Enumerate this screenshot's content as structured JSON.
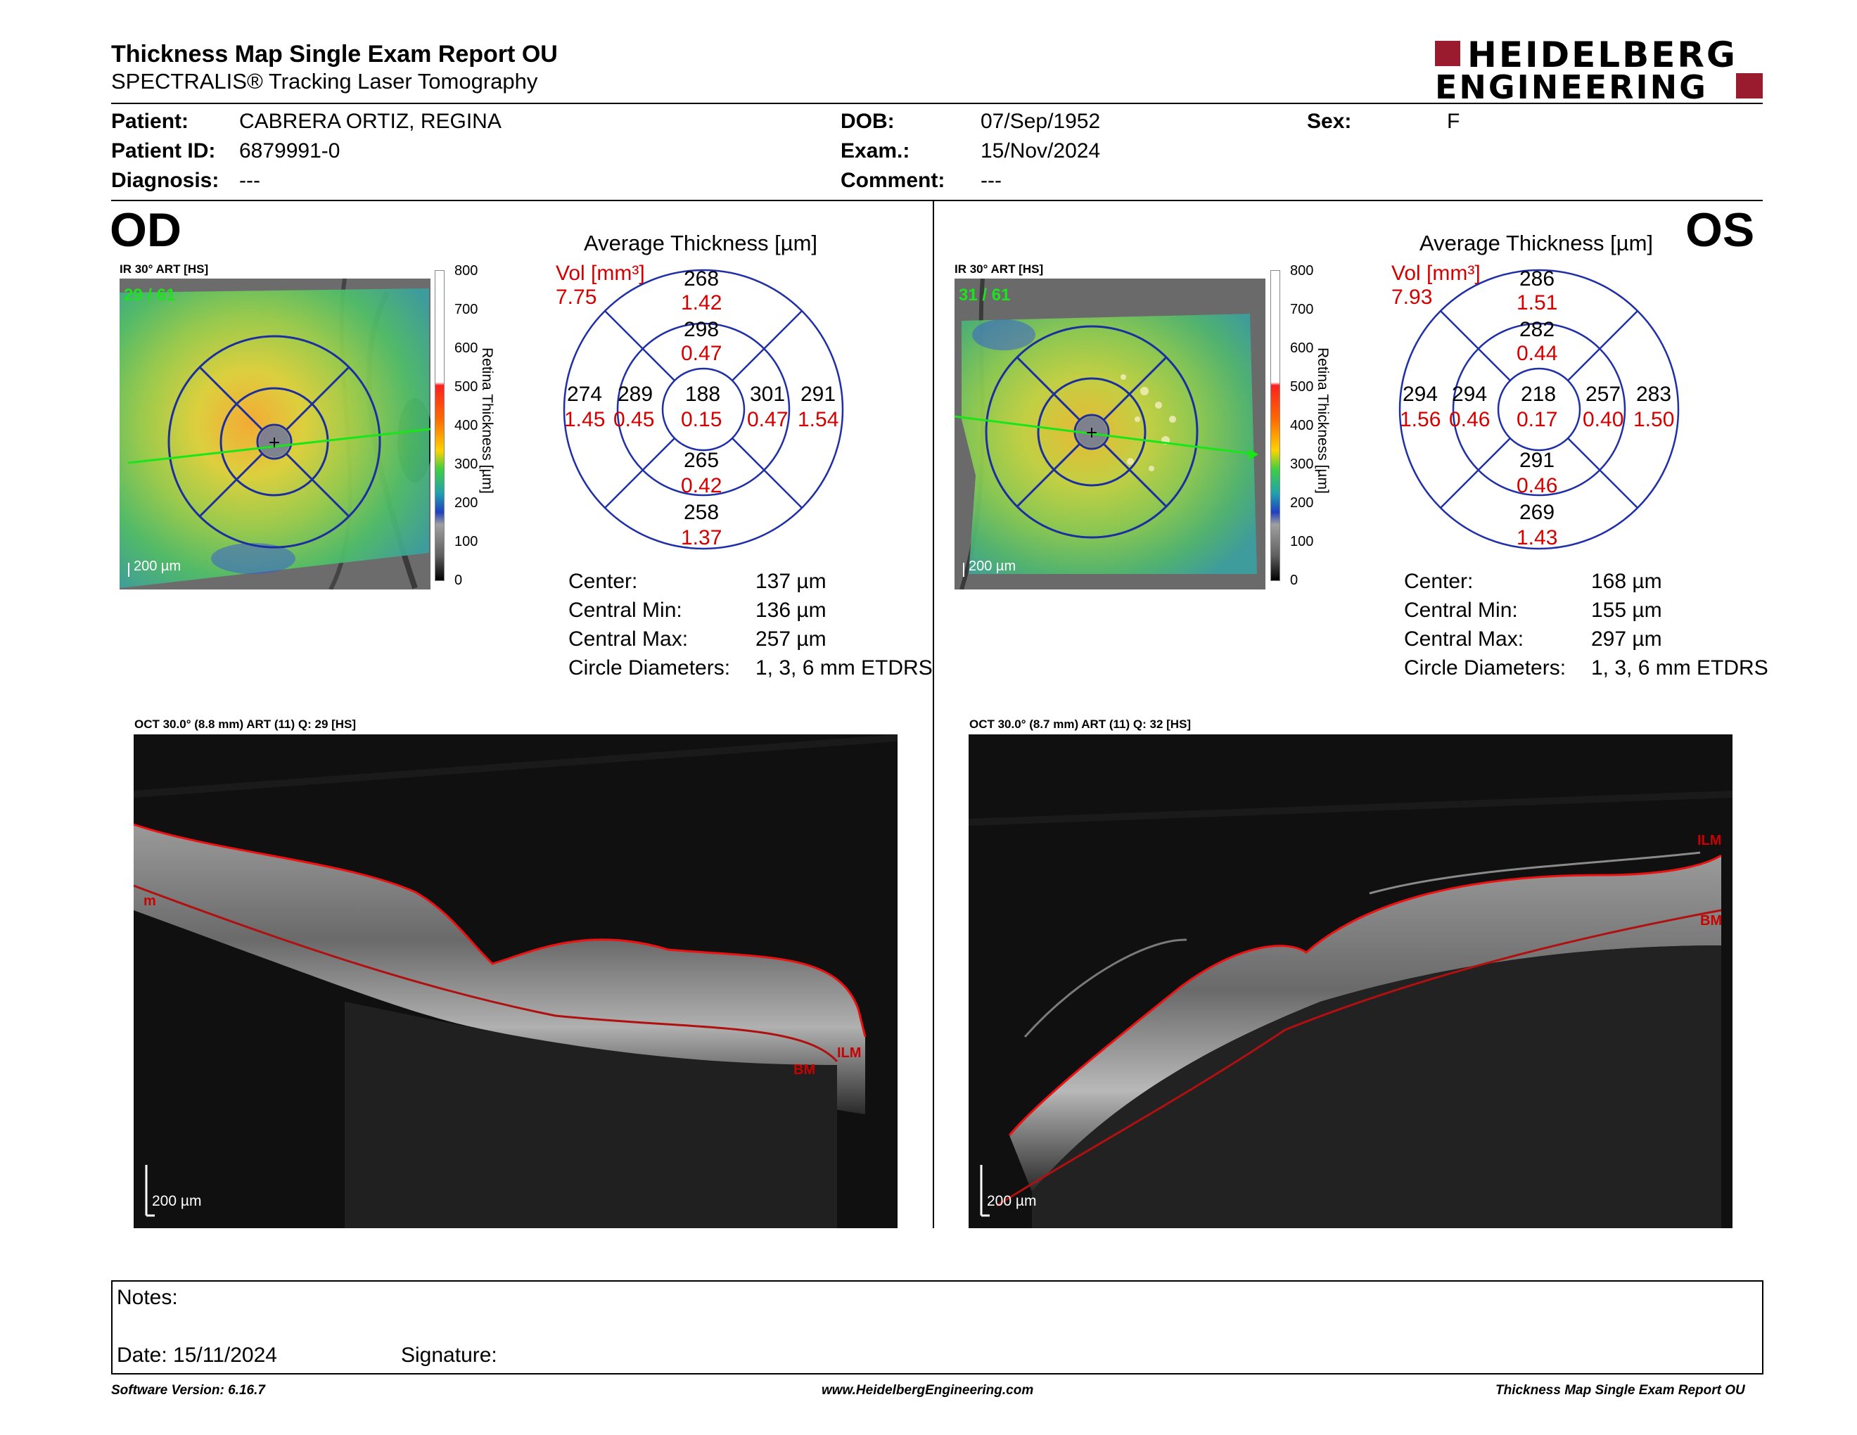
{
  "header": {
    "title": "Thickness Map Single Exam Report OU",
    "subtitle": "SPECTRALIS® Tracking Laser Tomography",
    "logo_line1": "HEIDELBERG",
    "logo_line2": "ENGINEERING"
  },
  "patient": {
    "patient_label": "Patient:",
    "patient_name": "CABRERA ORTIZ, REGINA",
    "id_label": "Patient ID:",
    "id": "6879991-0",
    "diagnosis_label": "Diagnosis:",
    "diagnosis": "---",
    "dob_label": "DOB:",
    "dob": "07/Sep/1952",
    "exam_label": "Exam.:",
    "exam": "15/Nov/2024",
    "comment_label": "Comment:",
    "comment": "---",
    "sex_label": "Sex:",
    "sex": "F"
  },
  "od": {
    "eye": "OD",
    "ir_label": "IR 30° ART [HS]",
    "frame_count": "29 / 61",
    "scale_label": "200 µm",
    "avg_title": "Average Thickness [µm]",
    "vol_label": "Vol [mm³]",
    "vol_total": "7.75",
    "grid": {
      "outer_top": "268",
      "outer_top_vol": "1.42",
      "inner_top": "298",
      "inner_top_vol": "0.47",
      "outer_left": "274",
      "outer_left_vol": "1.45",
      "inner_left": "289",
      "inner_left_vol": "0.45",
      "center": "188",
      "center_vol": "0.15",
      "inner_right": "301",
      "inner_right_vol": "0.47",
      "outer_right": "291",
      "outer_right_vol": "1.54",
      "inner_bottom": "265",
      "inner_bottom_vol": "0.42",
      "outer_bottom": "258",
      "outer_bottom_vol": "1.37"
    },
    "stats": {
      "center_label": "Center:",
      "center": "137 µm",
      "min_label": "Central Min:",
      "min": "136 µm",
      "max_label": "Central Max:",
      "max": "257 µm",
      "diam_label": "Circle Diameters:",
      "diam": "1, 3, 6 mm ETDRS"
    },
    "oct_label": "OCT 30.0° (8.8 mm) ART (11) Q: 29 [HS]",
    "oct_scale": "200 µm",
    "marker_ilm": "ILM",
    "marker_bm": "BM",
    "marker_left": "m"
  },
  "os": {
    "eye": "OS",
    "ir_label": "IR 30° ART [HS]",
    "frame_count": "31 / 61",
    "scale_label": "200 µm",
    "avg_title": "Average Thickness [µm]",
    "vol_label": "Vol [mm³]",
    "vol_total": "7.93",
    "grid": {
      "outer_top": "286",
      "outer_top_vol": "1.51",
      "inner_top": "282",
      "inner_top_vol": "0.44",
      "outer_left": "294",
      "outer_left_vol": "1.56",
      "inner_left": "294",
      "inner_left_vol": "0.46",
      "center": "218",
      "center_vol": "0.17",
      "inner_right": "257",
      "inner_right_vol": "0.40",
      "outer_right": "283",
      "outer_right_vol": "1.50",
      "inner_bottom": "291",
      "inner_bottom_vol": "0.46",
      "outer_bottom": "269",
      "outer_bottom_vol": "1.43"
    },
    "stats": {
      "center_label": "Center:",
      "center": "168 µm",
      "min_label": "Central Min:",
      "min": "155 µm",
      "max_label": "Central Max:",
      "max": "297 µm",
      "diam_label": "Circle Diameters:",
      "diam": "1, 3, 6 mm ETDRS"
    },
    "oct_label": "OCT 30.0° (8.7 mm) ART (11) Q: 32 [HS]",
    "oct_scale": "200 µm",
    "marker_ilm": "ILM",
    "marker_bm": "BM"
  },
  "colorbar": {
    "ticks": [
      "800",
      "700",
      "600",
      "500",
      "400",
      "300",
      "200",
      "100",
      "0"
    ],
    "title": "Retina Thickness [µm]"
  },
  "notes": {
    "notes_label": "Notes:",
    "date_label": "Date: 15/11/2024",
    "signature_label": "Signature:"
  },
  "footer": {
    "software": "Software Version: 6.16.7",
    "website": "www.HeidelbergEngineering.com",
    "report": "Thickness Map Single Exam Report OU"
  },
  "colors": {
    "red_label": "#d40000",
    "grid_blue": "#1f2fa8",
    "logo_red": "#9b1b2e"
  }
}
